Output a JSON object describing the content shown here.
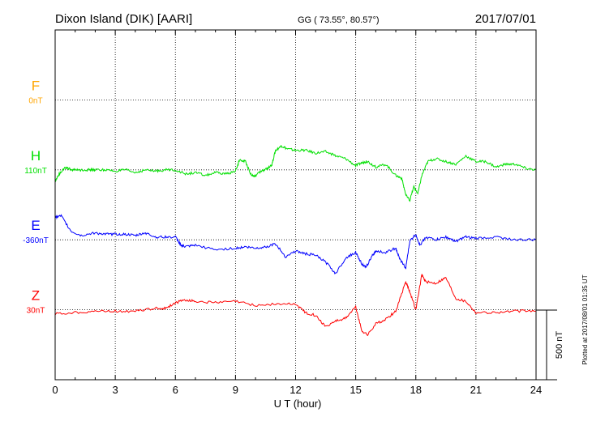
{
  "header": {
    "station": "Dixon Island (DIK)  [AARI]",
    "coords": "GG ( 73.55°,  80.57°)",
    "date": "2017/07/01"
  },
  "footer": {
    "plotted": "Plotted at 2017/08/01 01:35 UT"
  },
  "scale": {
    "label": "500 nT",
    "value_nT": 500
  },
  "chart_data": {
    "type": "line",
    "title": "Dixon Island (DIK)  [AARI]",
    "xlabel": "U T (hour)",
    "ylabel": "",
    "xlim": [
      0,
      24
    ],
    "xticks": [
      0,
      3,
      6,
      9,
      12,
      15,
      18,
      21,
      24
    ],
    "tick_labels": [
      "0",
      "3",
      "6",
      "9",
      "12",
      "15",
      "18",
      "21",
      "24"
    ],
    "grid": true,
    "scale_nT_per_division": 500,
    "series": [
      {
        "name": "F",
        "baseline_label": "0nT",
        "color": "#ffa500",
        "baseline_level": 1,
        "x": [],
        "values": []
      },
      {
        "name": "H",
        "baseline_label": "110nT",
        "color": "#00e000",
        "baseline_level": 2,
        "x": [
          0,
          0.2,
          0.5,
          0.8,
          1.2,
          1.6,
          2,
          2.5,
          3,
          3.5,
          4,
          4.5,
          5,
          5.5,
          6,
          6.5,
          7,
          7.5,
          8,
          8.5,
          9,
          9.2,
          9.5,
          9.8,
          10,
          10.3,
          10.6,
          10.8,
          11,
          11.3,
          11.6,
          12,
          12.5,
          13,
          13.5,
          14,
          14.5,
          15,
          15.3,
          15.6,
          16,
          16.5,
          17,
          17.3,
          17.5,
          17.7,
          17.9,
          18.1,
          18.3,
          18.6,
          19,
          19.5,
          20,
          20.5,
          21,
          21.5,
          22,
          22.5,
          23,
          23.5,
          24
        ],
        "values": [
          -80,
          -30,
          20,
          0,
          0,
          0,
          0,
          0,
          -10,
          0,
          -20,
          0,
          -10,
          0,
          0,
          -30,
          -20,
          -40,
          -20,
          -30,
          -10,
          70,
          60,
          -40,
          -40,
          -10,
          10,
          30,
          140,
          170,
          150,
          140,
          140,
          120,
          130,
          100,
          80,
          30,
          50,
          60,
          20,
          40,
          -40,
          -60,
          -180,
          -220,
          -120,
          -170,
          -40,
          60,
          80,
          60,
          40,
          100,
          60,
          60,
          20,
          40,
          40,
          10,
          0
        ]
      },
      {
        "name": "E",
        "baseline_label": "-360nT",
        "color": "#0000ff",
        "baseline_level": 3,
        "x": [
          0,
          0.3,
          0.8,
          1.3,
          2,
          2.5,
          3,
          3.5,
          4,
          4.5,
          5,
          5.5,
          6,
          6.3,
          6.5,
          7,
          8,
          9,
          9.5,
          10,
          10.5,
          11,
          11.5,
          12,
          12.5,
          13,
          13.5,
          14,
          14.5,
          15,
          15.3,
          15.5,
          15.8,
          16,
          16.5,
          17,
          17.2,
          17.5,
          17.7,
          18,
          18.2,
          18.5,
          19,
          19.5,
          20,
          20.5,
          21,
          22,
          23,
          24
        ],
        "values": [
          160,
          170,
          60,
          30,
          50,
          40,
          40,
          40,
          30,
          50,
          20,
          20,
          20,
          -40,
          -50,
          -40,
          -70,
          -60,
          -50,
          -60,
          -50,
          -30,
          -120,
          -80,
          -100,
          -110,
          -160,
          -240,
          -130,
          -90,
          -170,
          -200,
          -120,
          -80,
          -90,
          -60,
          -140,
          -200,
          -10,
          40,
          -40,
          20,
          0,
          20,
          -10,
          20,
          10,
          20,
          0,
          0
        ]
      },
      {
        "name": "Z",
        "baseline_label": "30nT",
        "color": "#ff0000",
        "baseline_level": 4,
        "x": [
          0,
          1,
          2,
          3,
          4,
          5,
          5.5,
          6,
          6.5,
          7,
          8,
          9,
          10,
          11,
          12,
          12.5,
          13,
          13.5,
          14,
          14.5,
          15,
          15.3,
          15.6,
          16,
          16.5,
          17,
          17.5,
          17.7,
          18,
          18.3,
          18.5,
          19,
          19.5,
          20,
          20.5,
          21,
          22,
          23,
          24
        ],
        "values": [
          -30,
          -20,
          -10,
          -10,
          -10,
          10,
          10,
          50,
          70,
          60,
          50,
          60,
          30,
          40,
          40,
          -20,
          -40,
          -120,
          -80,
          -60,
          20,
          -150,
          -180,
          -100,
          -70,
          -10,
          200,
          130,
          0,
          250,
          200,
          190,
          230,
          80,
          60,
          -20,
          -20,
          -10,
          -10
        ]
      }
    ]
  }
}
